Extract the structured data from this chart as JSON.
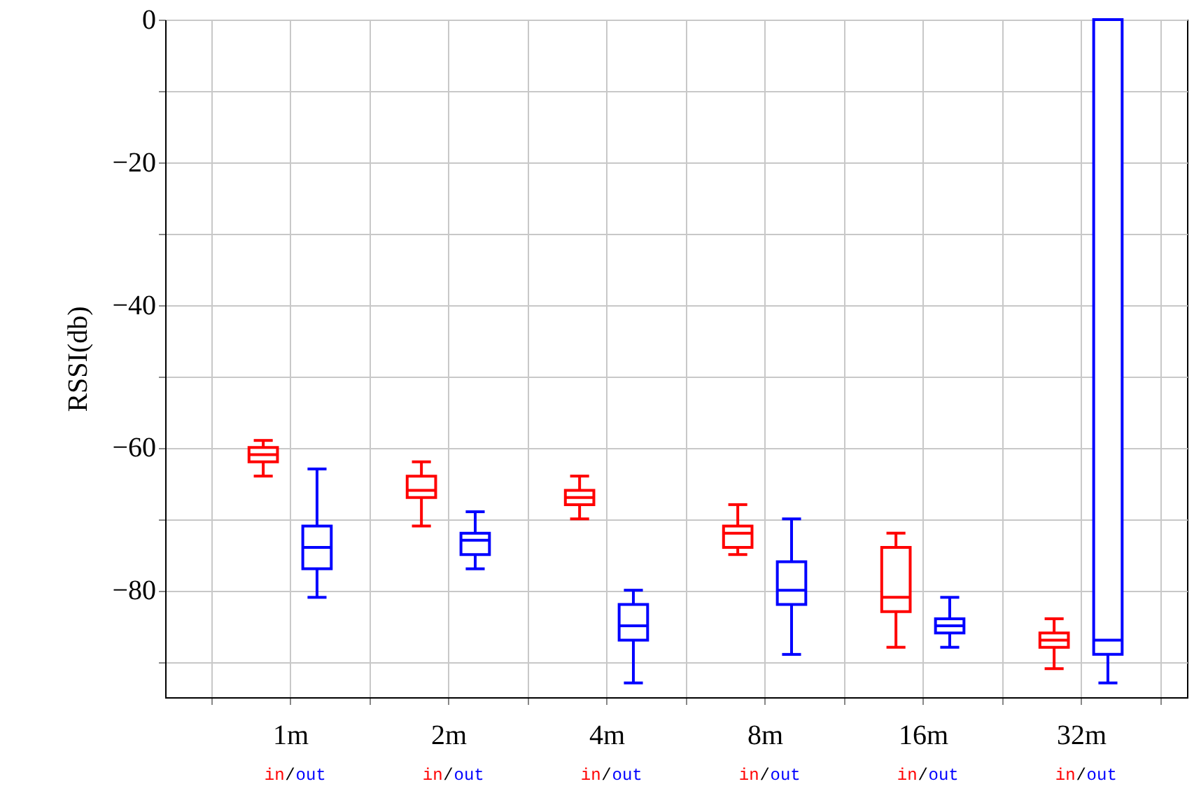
{
  "chart_data": {
    "type": "box",
    "ylabel": "RSSI(db)",
    "categories": [
      "1m",
      "2m",
      "4m",
      "8m",
      "16m",
      "32m"
    ],
    "ylim": [
      -95,
      0
    ],
    "yticks": [
      0,
      {
        "value": -10,
        "label": null
      },
      -20,
      {
        "value": -30,
        "label": null
      },
      -40,
      {
        "value": -50,
        "label": null
      },
      -60,
      {
        "value": -70,
        "label": null
      },
      -80,
      {
        "value": -90,
        "label": null
      }
    ],
    "grid": true,
    "annotations": [
      "/"
    ],
    "series": [
      {
        "name": "in",
        "color": "#ff0000",
        "boxes": [
          {
            "low": -64,
            "q1": -62,
            "median": -61,
            "q3": -60,
            "high": -59
          },
          {
            "low": -71,
            "q1": -67,
            "median": -66,
            "q3": -64,
            "high": -62
          },
          {
            "low": -70,
            "q1": -68,
            "median": -67,
            "q3": -66,
            "high": -64
          },
          {
            "low": -75,
            "q1": -74,
            "median": -72,
            "q3": -71,
            "high": -68
          },
          {
            "low": -88,
            "q1": -83,
            "median": -81,
            "q3": -74,
            "high": -72
          },
          {
            "low": -91,
            "q1": -88,
            "median": -87,
            "q3": -86,
            "high": -84
          }
        ]
      },
      {
        "name": "out",
        "color": "#0000ff",
        "boxes": [
          {
            "low": -81,
            "q1": -77,
            "median": -74,
            "q3": -71,
            "high": -63
          },
          {
            "low": -77,
            "q1": -75,
            "median": -73,
            "q3": -72,
            "high": -69
          },
          {
            "low": -93,
            "q1": -87,
            "median": -85,
            "q3": -82,
            "high": -80
          },
          {
            "low": -89,
            "q1": -82,
            "median": -80,
            "q3": -76,
            "high": -70
          },
          {
            "low": -88,
            "q1": -86,
            "median": -85,
            "q3": -84,
            "high": -81
          },
          {
            "low": -93,
            "q1": -89,
            "median": -87,
            "q3": 0,
            "high": 0
          }
        ]
      }
    ]
  }
}
